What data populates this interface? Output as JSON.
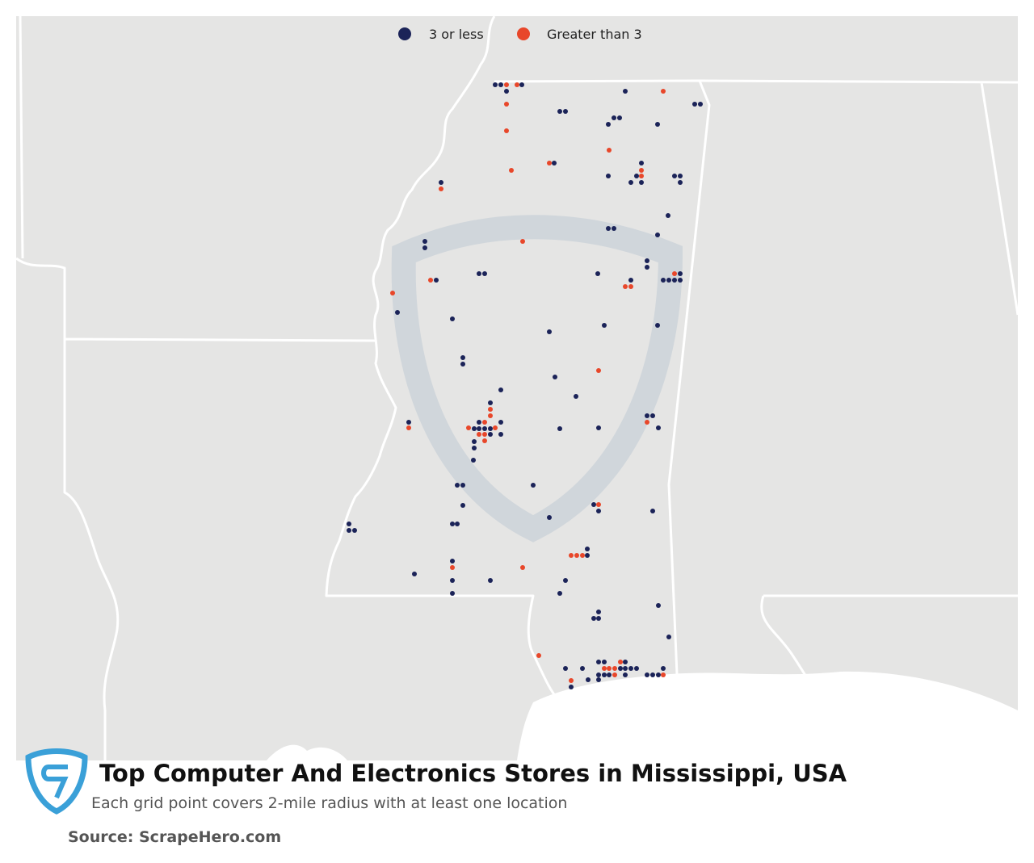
{
  "legend": {
    "items": [
      {
        "label": "3 or less",
        "color": "#1b2358"
      },
      {
        "label": "Greater than 3",
        "color": "#e8472a"
      }
    ]
  },
  "title": "Top Computer And Electronics Stores in Mississippi, USA",
  "subtitle": "Each grid point covers 2-mile radius with at least one location",
  "source": "Source: ScrapeHero.com"
}
